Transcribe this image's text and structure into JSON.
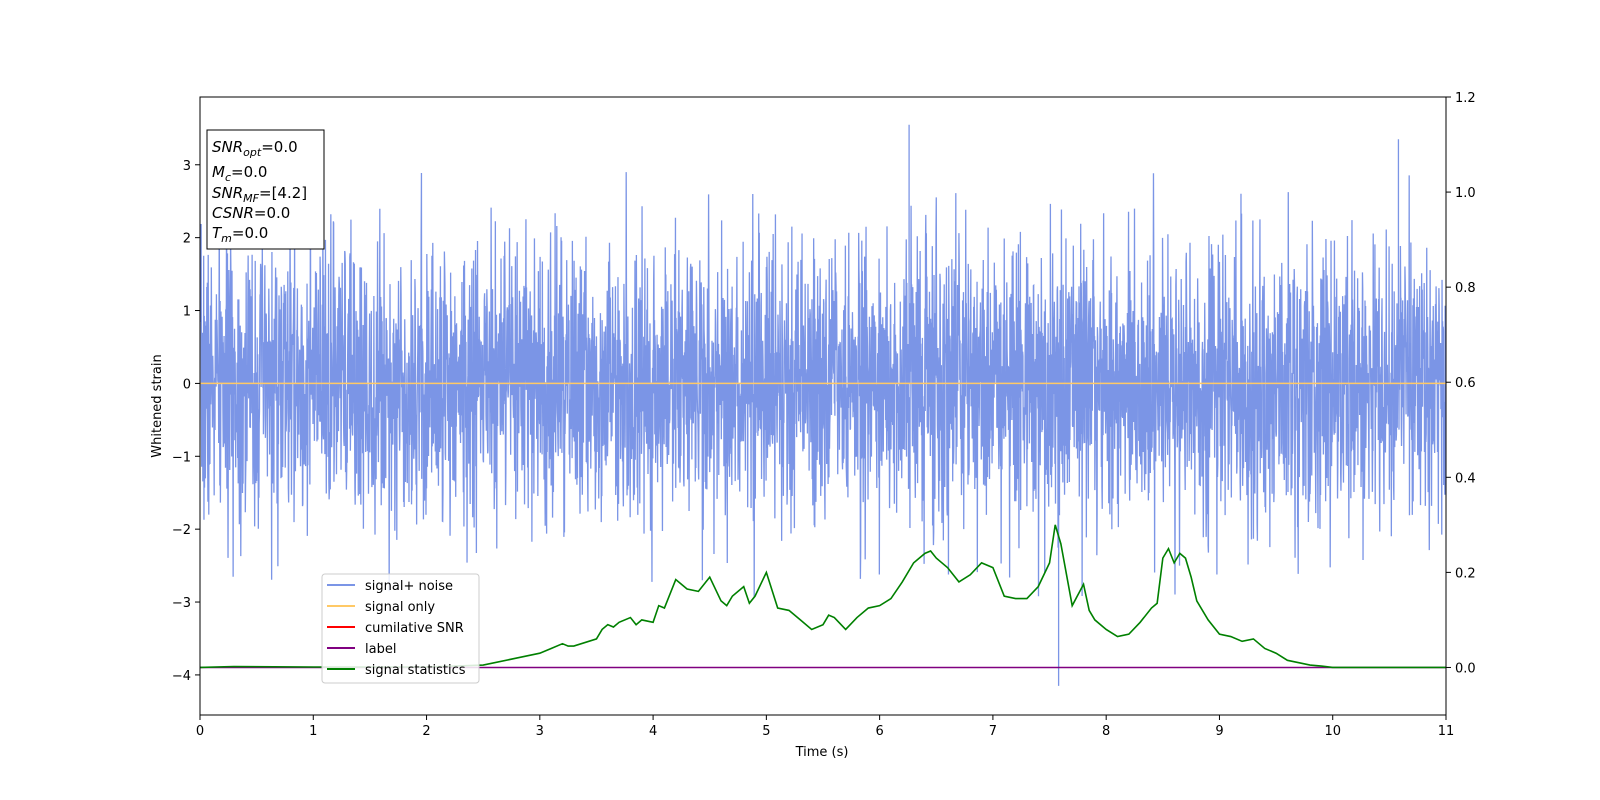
{
  "chart_data": {
    "type": "line",
    "xlabel": "Time (s)",
    "ylabel": "Whitened strain",
    "xlim": [
      0,
      11
    ],
    "ylim": [
      -4.55,
      3.93
    ],
    "y2lim": [
      -0.1,
      1.2
    ],
    "x_ticks": [
      0,
      1,
      2,
      3,
      4,
      5,
      6,
      7,
      8,
      9,
      10,
      11
    ],
    "y_ticks": [
      -4,
      -3,
      -2,
      -1,
      0,
      1,
      2,
      3
    ],
    "y2_ticks": [
      0.0,
      0.2,
      0.4,
      0.6,
      0.8,
      1.0,
      1.2
    ],
    "y_tick_labels": [
      "−4",
      "−3",
      "−2",
      "−1",
      "0",
      "1",
      "2",
      "3"
    ],
    "y2_tick_labels": [
      "0.0",
      "0.2",
      "0.4",
      "0.6",
      "0.8",
      "1.0",
      "1.2"
    ],
    "grid": false,
    "legend_placement": "lower-left",
    "info_box": {
      "lines": [
        {
          "symbol": "SNR",
          "sub": "opt",
          "value": "=0.0"
        },
        {
          "symbol": "M",
          "sub": "c",
          "value": "=0.0"
        },
        {
          "symbol": "SNR",
          "sub": "MF",
          "value": "=[4.2]"
        },
        {
          "symbol": "CSNR",
          "sub": "",
          "value": "=0.0"
        },
        {
          "symbol": "T",
          "sub": "m",
          "value": "=0.0"
        }
      ]
    },
    "series": [
      {
        "name": "signal+ noise",
        "color": "#7b95e6",
        "axis": "left",
        "description": "whitened noise, approx. zero-mean, amplitude mostly within about -2.6 to 2.6",
        "amplitude_range": [
          -4.15,
          3.55
        ],
        "notable_points": [
          {
            "x": 6.26,
            "y": 3.55
          },
          {
            "x": 7.58,
            "y": -4.15
          },
          {
            "x": 10.58,
            "y": 3.35
          }
        ]
      },
      {
        "name": "signal only",
        "color": "#ffc966",
        "axis": "left",
        "x": [
          0,
          11
        ],
        "y": [
          0,
          0
        ]
      },
      {
        "name": "cumilative SNR",
        "color": "#ff0000",
        "axis": "left",
        "x": [],
        "y": []
      },
      {
        "name": "label",
        "color": "#800080",
        "axis": "right",
        "x": [
          0,
          11
        ],
        "y": [
          0,
          0
        ]
      },
      {
        "name": "signal statistics",
        "color": "#008000",
        "axis": "right",
        "x": [
          0,
          0.3,
          1.0,
          2.0,
          2.5,
          2.8,
          3.0,
          3.1,
          3.2,
          3.25,
          3.3,
          3.5,
          3.55,
          3.6,
          3.65,
          3.7,
          3.8,
          3.85,
          3.9,
          4.0,
          4.05,
          4.1,
          4.2,
          4.25,
          4.3,
          4.4,
          4.5,
          4.6,
          4.65,
          4.7,
          4.8,
          4.85,
          4.9,
          5.0,
          5.1,
          5.2,
          5.3,
          5.4,
          5.5,
          5.55,
          5.6,
          5.7,
          5.8,
          5.9,
          6.0,
          6.1,
          6.2,
          6.3,
          6.4,
          6.45,
          6.5,
          6.6,
          6.7,
          6.8,
          6.9,
          7.0,
          7.1,
          7.2,
          7.3,
          7.4,
          7.5,
          7.55,
          7.6,
          7.7,
          7.8,
          7.85,
          7.9,
          8.0,
          8.1,
          8.2,
          8.3,
          8.4,
          8.45,
          8.5,
          8.55,
          8.6,
          8.65,
          8.7,
          8.75,
          8.8,
          8.9,
          9.0,
          9.1,
          9.2,
          9.3,
          9.4,
          9.5,
          9.6,
          9.7,
          9.8,
          9.9,
          10.0,
          10.2,
          10.5,
          11.0
        ],
        "y": [
          0.0,
          0.002,
          0.001,
          0.001,
          0.005,
          0.02,
          0.03,
          0.04,
          0.05,
          0.045,
          0.045,
          0.06,
          0.08,
          0.09,
          0.085,
          0.095,
          0.105,
          0.09,
          0.1,
          0.095,
          0.13,
          0.125,
          0.185,
          0.175,
          0.165,
          0.16,
          0.19,
          0.14,
          0.13,
          0.15,
          0.17,
          0.135,
          0.15,
          0.2,
          0.125,
          0.12,
          0.1,
          0.08,
          0.09,
          0.11,
          0.105,
          0.08,
          0.105,
          0.125,
          0.13,
          0.145,
          0.18,
          0.22,
          0.24,
          0.245,
          0.23,
          0.21,
          0.18,
          0.195,
          0.22,
          0.21,
          0.15,
          0.145,
          0.145,
          0.17,
          0.22,
          0.3,
          0.26,
          0.13,
          0.175,
          0.12,
          0.1,
          0.08,
          0.065,
          0.07,
          0.095,
          0.125,
          0.135,
          0.23,
          0.25,
          0.22,
          0.24,
          0.23,
          0.19,
          0.14,
          0.1,
          0.07,
          0.065,
          0.055,
          0.06,
          0.04,
          0.03,
          0.015,
          0.01,
          0.005,
          0.003,
          0.0,
          0.0,
          0.0,
          0.0
        ]
      }
    ]
  }
}
